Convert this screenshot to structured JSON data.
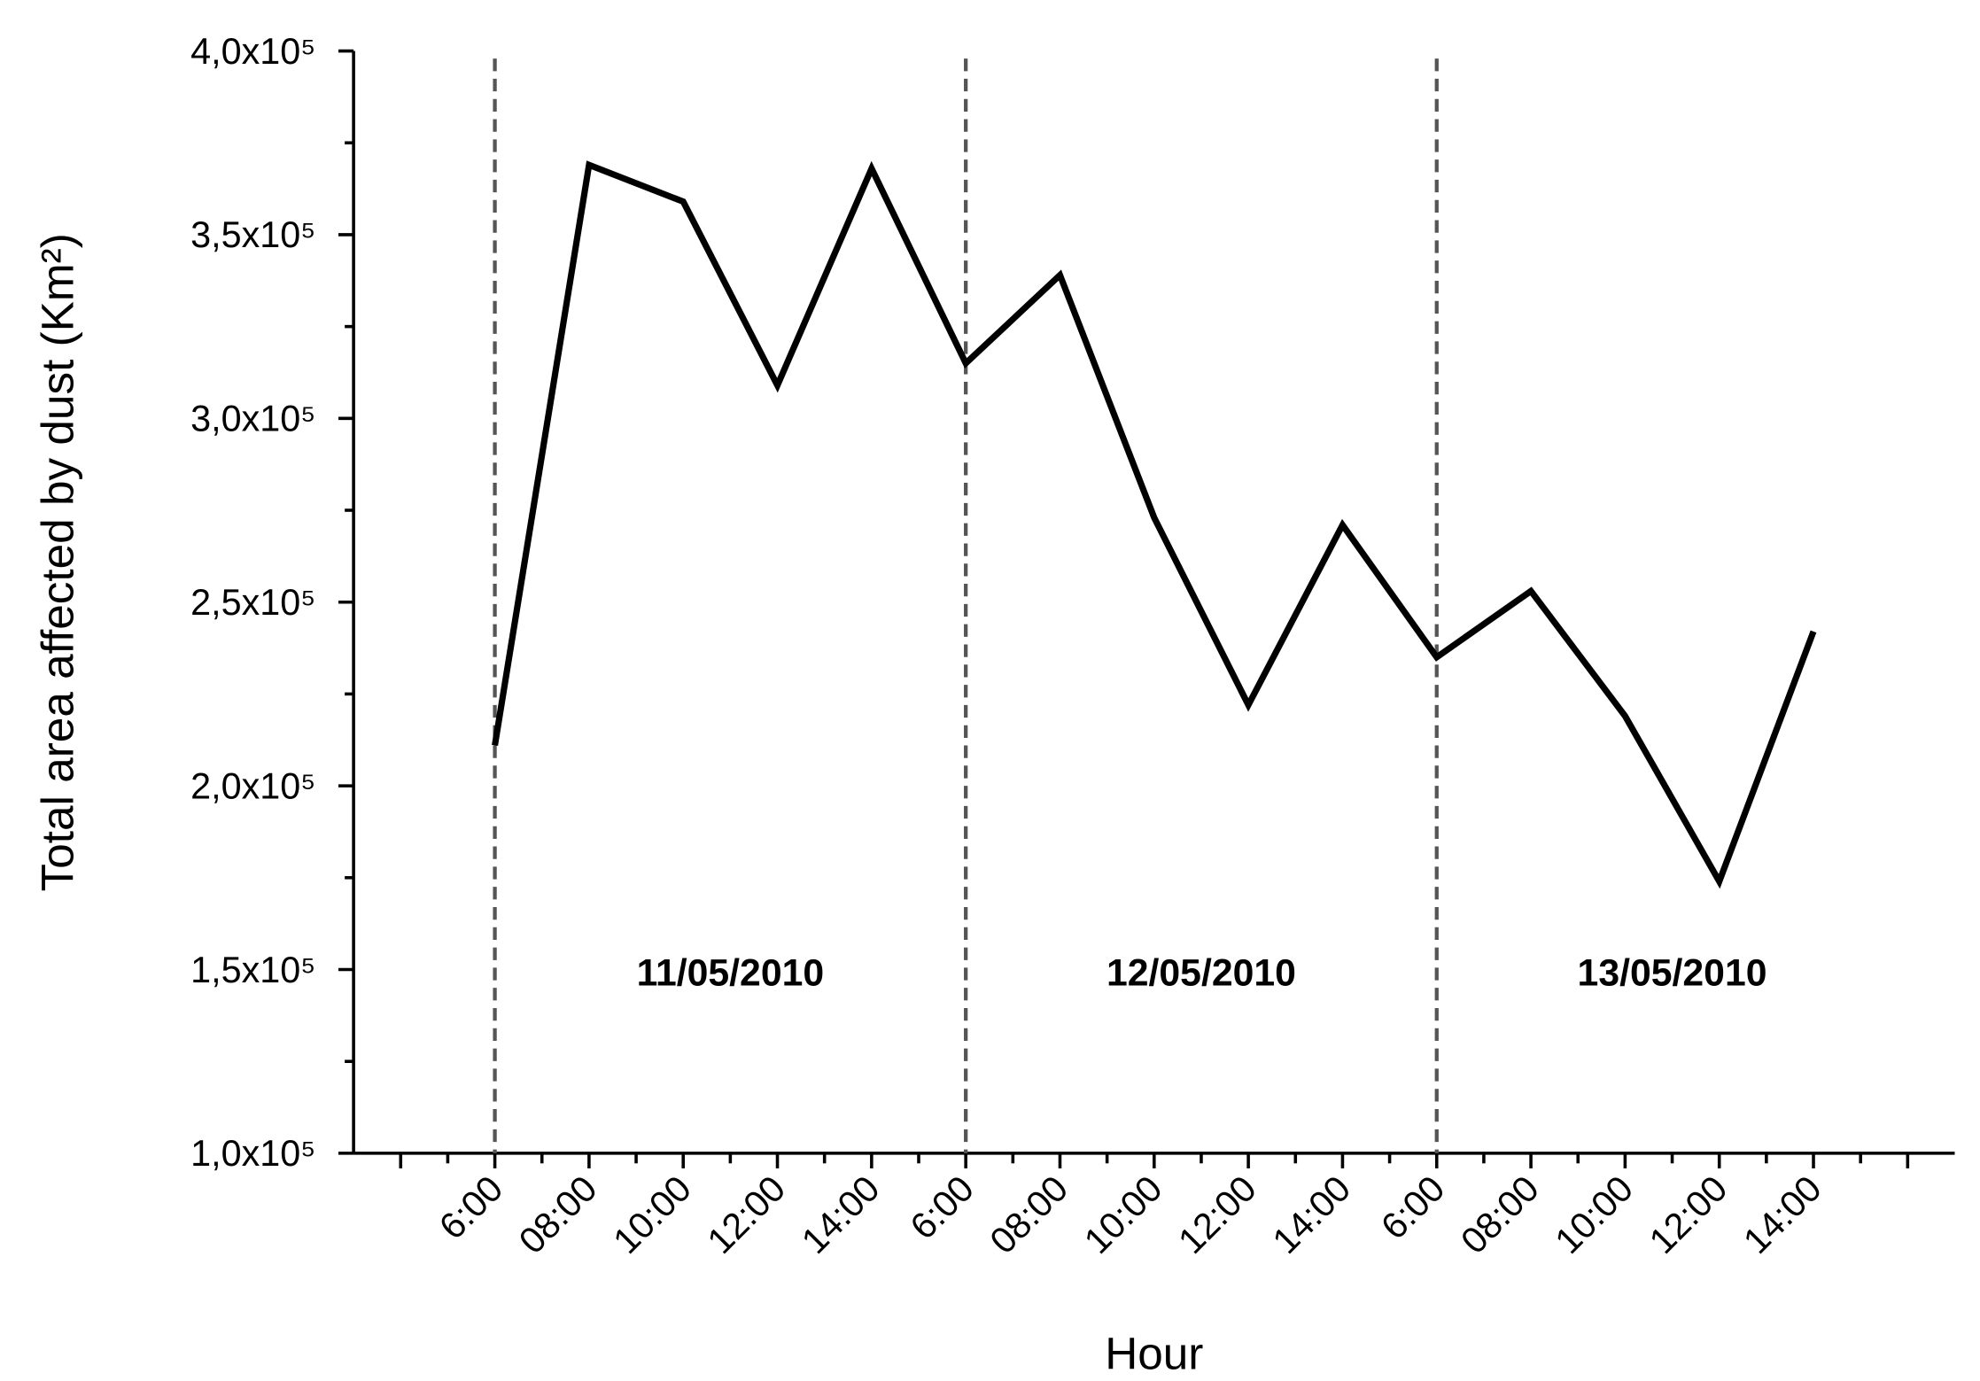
{
  "chart_data": {
    "type": "line",
    "ylabel": "Total area affected by dust (Km²)",
    "xlabel": "Hour",
    "categories": [
      null,
      "6:00",
      "08:00",
      "10:00",
      "12:00",
      "14:00",
      "6:00",
      "08:00",
      "10:00",
      "12:00",
      "14:00",
      "6:00",
      "08:00",
      "10:00",
      "12:00",
      "14:00",
      null
    ],
    "series": [
      {
        "color": "#000000",
        "values": [
          null,
          211000,
          369000,
          359000,
          309000,
          368000,
          315000,
          339000,
          273000,
          222000,
          271000,
          235000,
          253000,
          219000,
          174000,
          242000,
          null
        ]
      }
    ],
    "periods": [
      "11/05/2010",
      "12/05/2010",
      "13/05/2010"
    ],
    "ylim": [
      100000,
      400000
    ],
    "yticks": [
      {
        "value": 100000,
        "label": "1,0x10⁵"
      },
      {
        "value": 150000,
        "label": "1,5x10⁵"
      },
      {
        "value": 200000,
        "label": "2,0x10⁵"
      },
      {
        "value": 250000,
        "label": "2,5x10⁵"
      },
      {
        "value": 300000,
        "label": "3,0x10⁵"
      },
      {
        "value": 350000,
        "label": "3,5x10⁵"
      },
      {
        "value": 400000,
        "label": "4,0x10⁵"
      }
    ]
  }
}
